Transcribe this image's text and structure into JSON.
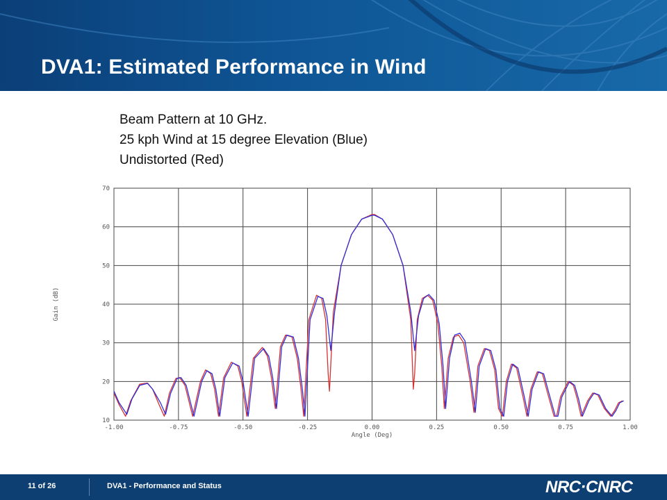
{
  "slide": {
    "title": "DVA1: Estimated Performance in Wind",
    "caption_lines": [
      "Beam Pattern at 10 GHz.",
      "25 kph Wind at 15 degree Elevation (Blue)",
      "Undistorted (Red)"
    ]
  },
  "footer": {
    "page": "11 of 26",
    "text": "DVA1 - Performance and Status",
    "logo": "NRC·CNRC"
  },
  "colors": {
    "header": "#0f5696",
    "footer": "#0d3f72",
    "series_blue": "#2f2fd8",
    "series_red": "#d83030"
  },
  "chart_data": {
    "type": "line",
    "xlabel": "Angle (Deg)",
    "ylabel": "Gain (dB)",
    "xlim": [
      -1.0,
      1.0
    ],
    "ylim": [
      10,
      70
    ],
    "xticks": [
      -1.0,
      -0.75,
      -0.5,
      -0.25,
      0.0,
      0.25,
      0.5,
      0.75,
      1.0
    ],
    "xtick_labels": [
      "-1.00",
      "-0.75",
      "-0.50",
      "-0.25",
      "0.00",
      "0.25",
      "0.50",
      "0.75",
      "1.00"
    ],
    "yticks": [
      10,
      20,
      30,
      40,
      50,
      60,
      70
    ],
    "ytick_labels": [
      "10",
      "20",
      "30",
      "40",
      "50",
      "60",
      "70"
    ],
    "grid": true,
    "series": [
      {
        "color": "#2f2fd8",
        "x": [
          -1.0,
          -0.98,
          -0.95,
          -0.93,
          -0.9,
          -0.87,
          -0.85,
          -0.82,
          -0.8,
          -0.78,
          -0.755,
          -0.74,
          -0.72,
          -0.69,
          -0.66,
          -0.64,
          -0.62,
          -0.605,
          -0.59,
          -0.57,
          -0.54,
          -0.515,
          -0.5,
          -0.48,
          -0.455,
          -0.42,
          -0.4,
          -0.385,
          -0.37,
          -0.35,
          -0.33,
          -0.305,
          -0.285,
          -0.27,
          -0.26,
          -0.24,
          -0.21,
          -0.19,
          -0.175,
          -0.16,
          -0.145,
          -0.12,
          -0.08,
          -0.04,
          0.0,
          0.01,
          0.04,
          0.08,
          0.12,
          0.15,
          0.165,
          0.18,
          0.2,
          0.22,
          0.24,
          0.26,
          0.275,
          0.285,
          0.3,
          0.32,
          0.34,
          0.36,
          0.385,
          0.4,
          0.415,
          0.44,
          0.46,
          0.48,
          0.495,
          0.51,
          0.525,
          0.545,
          0.565,
          0.59,
          0.605,
          0.62,
          0.645,
          0.665,
          0.685,
          0.71,
          0.72,
          0.735,
          0.765,
          0.785,
          0.8,
          0.815,
          0.84,
          0.86,
          0.88,
          0.905,
          0.93,
          0.945,
          0.96,
          0.975
        ],
        "y": [
          17.5,
          14.5,
          11.5,
          15.5,
          19.0,
          19.5,
          18.0,
          14.5,
          11.5,
          17.0,
          20.8,
          21.0,
          19.0,
          11.0,
          20.0,
          22.8,
          22.0,
          18.0,
          11.0,
          21.0,
          24.8,
          24.0,
          20.0,
          11.0,
          26.0,
          28.5,
          26.5,
          21.0,
          13.0,
          29.0,
          32.0,
          31.5,
          26.0,
          18.0,
          11.0,
          36.0,
          42.0,
          41.5,
          37.0,
          28.0,
          38.0,
          50.0,
          58.0,
          62.0,
          63.0,
          63.0,
          62.0,
          58.0,
          50.0,
          38.0,
          28.0,
          37.0,
          41.5,
          42.5,
          41.0,
          35.0,
          24.0,
          13.0,
          26.0,
          32.0,
          32.5,
          30.5,
          20.0,
          12.0,
          24.0,
          28.5,
          28.0,
          23.0,
          13.0,
          11.0,
          20.0,
          24.5,
          23.5,
          16.0,
          11.0,
          18.0,
          22.5,
          22.0,
          17.0,
          11.0,
          11.0,
          16.0,
          20.0,
          19.0,
          15.5,
          11.0,
          15.0,
          17.0,
          16.5,
          13.0,
          11.0,
          12.5,
          14.5,
          15.0
        ]
      },
      {
        "color": "#d83030",
        "x": [
          -1.0,
          -0.98,
          -0.955,
          -0.935,
          -0.9,
          -0.87,
          -0.85,
          -0.825,
          -0.805,
          -0.785,
          -0.76,
          -0.745,
          -0.725,
          -0.695,
          -0.665,
          -0.645,
          -0.625,
          -0.61,
          -0.595,
          -0.575,
          -0.545,
          -0.52,
          -0.505,
          -0.485,
          -0.46,
          -0.425,
          -0.405,
          -0.39,
          -0.375,
          -0.355,
          -0.335,
          -0.31,
          -0.29,
          -0.275,
          -0.265,
          -0.245,
          -0.215,
          -0.195,
          -0.18,
          -0.17,
          -0.165,
          -0.15,
          -0.12,
          -0.08,
          -0.04,
          0.0,
          0.01,
          0.04,
          0.08,
          0.12,
          0.15,
          0.16,
          0.165,
          0.175,
          0.195,
          0.215,
          0.235,
          0.255,
          0.27,
          0.28,
          0.295,
          0.315,
          0.335,
          0.355,
          0.38,
          0.395,
          0.41,
          0.435,
          0.455,
          0.475,
          0.49,
          0.505,
          0.52,
          0.54,
          0.56,
          0.585,
          0.6,
          0.615,
          0.64,
          0.66,
          0.68,
          0.705,
          0.715,
          0.73,
          0.76,
          0.78,
          0.795,
          0.81,
          0.835,
          0.855,
          0.875,
          0.9,
          0.925,
          0.94,
          0.955,
          0.97
        ],
        "y": [
          17.0,
          14.0,
          11.0,
          15.0,
          19.3,
          19.6,
          18.0,
          14.0,
          11.0,
          17.0,
          20.8,
          21.0,
          19.0,
          11.0,
          20.0,
          23.0,
          22.0,
          18.0,
          11.0,
          21.0,
          25.0,
          24.0,
          20.0,
          11.0,
          26.0,
          28.8,
          26.5,
          21.0,
          13.0,
          29.0,
          32.0,
          31.5,
          26.0,
          18.0,
          11.0,
          36.0,
          42.3,
          41.5,
          36.0,
          22.0,
          17.5,
          38.0,
          50.0,
          58.0,
          62.0,
          63.2,
          63.2,
          62.0,
          58.0,
          50.0,
          36.0,
          18.0,
          22.0,
          36.0,
          41.5,
          42.3,
          41.0,
          35.0,
          24.0,
          13.0,
          26.0,
          31.5,
          32.0,
          30.0,
          20.0,
          12.0,
          24.0,
          28.5,
          28.0,
          23.0,
          13.0,
          11.0,
          20.0,
          24.5,
          23.5,
          16.0,
          11.0,
          18.0,
          22.5,
          22.0,
          17.0,
          11.0,
          11.0,
          16.0,
          20.0,
          19.0,
          15.5,
          11.0,
          15.0,
          17.0,
          16.5,
          13.0,
          11.0,
          12.5,
          14.5,
          15.0
        ]
      }
    ]
  }
}
